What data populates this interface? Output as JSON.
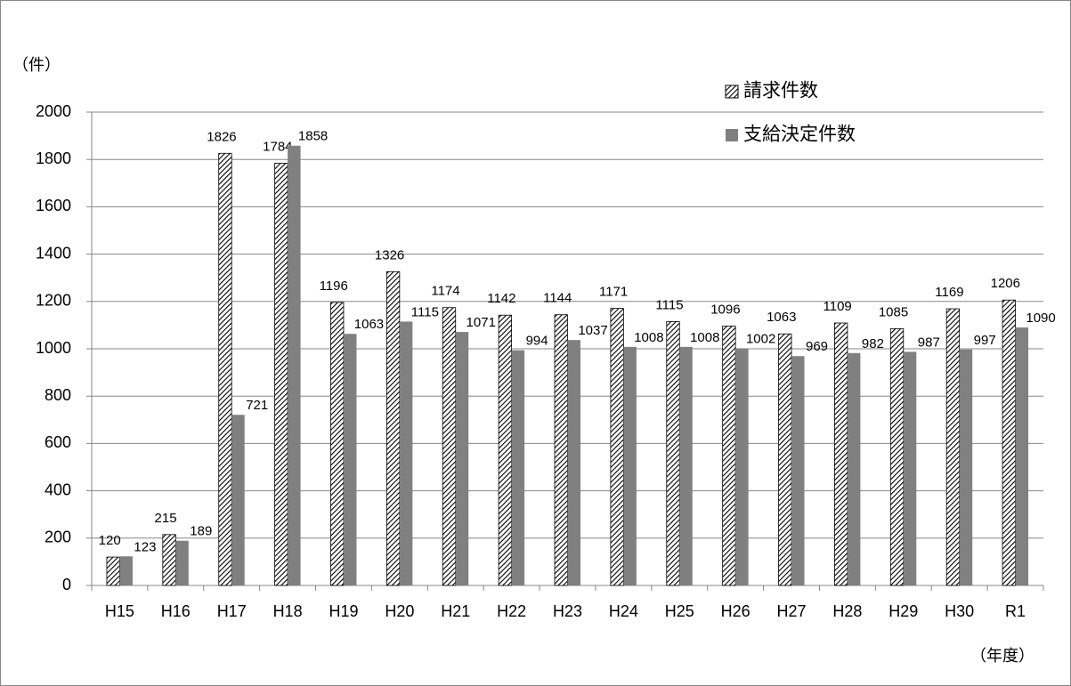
{
  "chart_data": {
    "type": "bar",
    "y_label": "（件）",
    "x_label": "（年度）",
    "categories": [
      "H15",
      "H16",
      "H17",
      "H18",
      "H19",
      "H20",
      "H21",
      "H22",
      "H23",
      "H24",
      "H25",
      "H26",
      "H27",
      "H28",
      "H29",
      "H30",
      "R1"
    ],
    "series": [
      {
        "name": "請求件数",
        "color": "#000000",
        "values": [
          120,
          215,
          1826,
          1784,
          1196,
          1326,
          1174,
          1142,
          1144,
          1171,
          1115,
          1096,
          1063,
          1109,
          1085,
          1169,
          1206
        ]
      },
      {
        "name": "支給決定件数",
        "color": "#808080",
        "values": [
          123,
          189,
          721,
          1858,
          1063,
          1115,
          1071,
          994,
          1037,
          1008,
          1008,
          1002,
          969,
          982,
          987,
          997,
          1090
        ]
      }
    ],
    "ylim": [
      0,
      2000
    ],
    "yticks": [
      0,
      200,
      400,
      600,
      800,
      1000,
      1200,
      1400,
      1600,
      1800,
      2000
    ],
    "grid": true,
    "legend": "top-right"
  }
}
